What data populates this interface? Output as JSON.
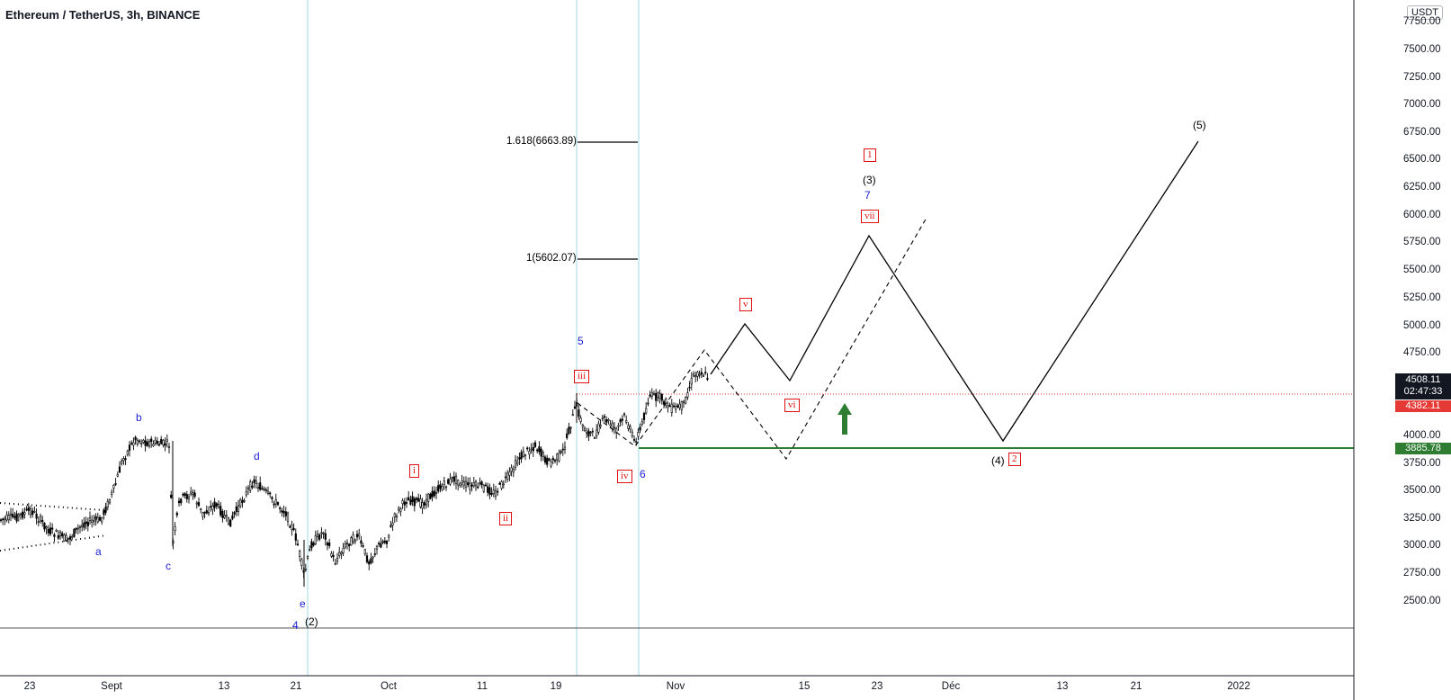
{
  "header": {
    "title": "Ethereum / TetherUS, 3h, BINANCE",
    "currency": "USDT"
  },
  "y_axis": {
    "ticks": [
      "7750.00",
      "7500.00",
      "7250.00",
      "7000.00",
      "6750.00",
      "6500.00",
      "6250.00",
      "6000.00",
      "5750.00",
      "5500.00",
      "5250.00",
      "5000.00",
      "4750.00",
      "4250.00",
      "4000.00",
      "3750.00",
      "3500.00",
      "3250.00",
      "3000.00",
      "2750.00",
      "2500.00"
    ]
  },
  "x_axis": {
    "ticks": [
      "23",
      "Sept",
      "13",
      "21",
      "Oct",
      "11",
      "19",
      "Nov",
      "15",
      "23",
      "Déc",
      "13",
      "21",
      "2022"
    ]
  },
  "price_badges": {
    "last_price": "4508.11",
    "countdown": "02:47:33",
    "prev_close": "4382.11",
    "support": "3885.78"
  },
  "fib_levels": {
    "f1618": "1.618(6663.89)",
    "f1": "1(5602.07)"
  },
  "wave_labels": {
    "a": "a",
    "b": "b",
    "c": "c",
    "d": "d",
    "e": "e",
    "w4": "4",
    "w2p": "(2)",
    "w5": "5",
    "w6": "6",
    "w7": "7",
    "w3p": "(3)",
    "w4p": "(4)",
    "w5p": "(5)",
    "r_i": "i",
    "r_ii": "ii",
    "r_iii": "iii",
    "r_iv": "iv",
    "r_v": "v",
    "r_vi": "vi",
    "r_vii": "vii",
    "r_1": "1",
    "r_2": "2"
  },
  "colors": {
    "up_arrow": "#2e7d32",
    "support_line": "#2e7d32",
    "price_line": "#e53935",
    "vline": "#9fd8e6"
  },
  "chart_data": {
    "type": "candlestick",
    "instrument": "Ethereum / TetherUS",
    "timeframe": "3h",
    "exchange": "BINANCE",
    "ylim": [
      2300,
      7900
    ],
    "current_price": 4508.11,
    "horizontal_levels": [
      4382.11,
      3885.78
    ],
    "fib_levels": [
      6663.89,
      5602.07
    ],
    "price_path": [
      {
        "x": "Aug 18",
        "y": 3230
      },
      {
        "x": "Aug 23",
        "y": 3290
      },
      {
        "x": "Aug 27",
        "y": 3120
      },
      {
        "x": "Aug 31",
        "y": 3300
      },
      {
        "x": "Sep 2",
        "y": 3700
      },
      {
        "x": "Sep 3",
        "y": 3980
      },
      {
        "x": "Sep 6",
        "y": 3920
      },
      {
        "x": "Sep 7",
        "y": 3100
      },
      {
        "x": "Sep 10",
        "y": 3400
      },
      {
        "x": "Sep 13",
        "y": 3250
      },
      {
        "x": "Sep 16",
        "y": 3600
      },
      {
        "x": "Sep 19",
        "y": 3350
      },
      {
        "x": "Sep 21",
        "y": 2800
      },
      {
        "x": "Sep 22",
        "y": 2850
      },
      {
        "x": "Sep 24",
        "y": 3050
      },
      {
        "x": "Sep 27",
        "y": 2850
      },
      {
        "x": "Sep 30",
        "y": 2900
      },
      {
        "x": "Oct 1",
        "y": 3250
      },
      {
        "x": "Oct 5",
        "y": 3500
      },
      {
        "x": "Oct 9",
        "y": 3600
      },
      {
        "x": "Oct 13",
        "y": 3450
      },
      {
        "x": "Oct 17",
        "y": 3800
      },
      {
        "x": "Oct 21",
        "y": 4300
      },
      {
        "x": "Oct 23",
        "y": 4000
      },
      {
        "x": "Oct 26",
        "y": 4200
      },
      {
        "x": "Oct 28",
        "y": 3950
      },
      {
        "x": "Oct 29",
        "y": 4400
      },
      {
        "x": "Nov 1",
        "y": 4300
      },
      {
        "x": "Nov 3",
        "y": 4600
      },
      {
        "x": "Nov 4",
        "y": 4508
      }
    ],
    "projection_solid": [
      {
        "x": "Nov 4",
        "y": 4508
      },
      {
        "x": "Nov 9",
        "y": 5020
      },
      {
        "x": "Nov 14",
        "y": 4530
      },
      {
        "x": "Nov 22",
        "y": 5800
      },
      {
        "x": "Dec 7",
        "y": 3960
      },
      {
        "x": "Dec 29",
        "y": 6680
      }
    ],
    "projection_dashed": [
      {
        "x": "Oct 22",
        "y": 4350
      },
      {
        "x": "Oct 28",
        "y": 3880
      },
      {
        "x": "Nov 4",
        "y": 4780
      },
      {
        "x": "Nov 14",
        "y": 3780
      },
      {
        "x": "Nov 27",
        "y": 6000
      }
    ]
  }
}
